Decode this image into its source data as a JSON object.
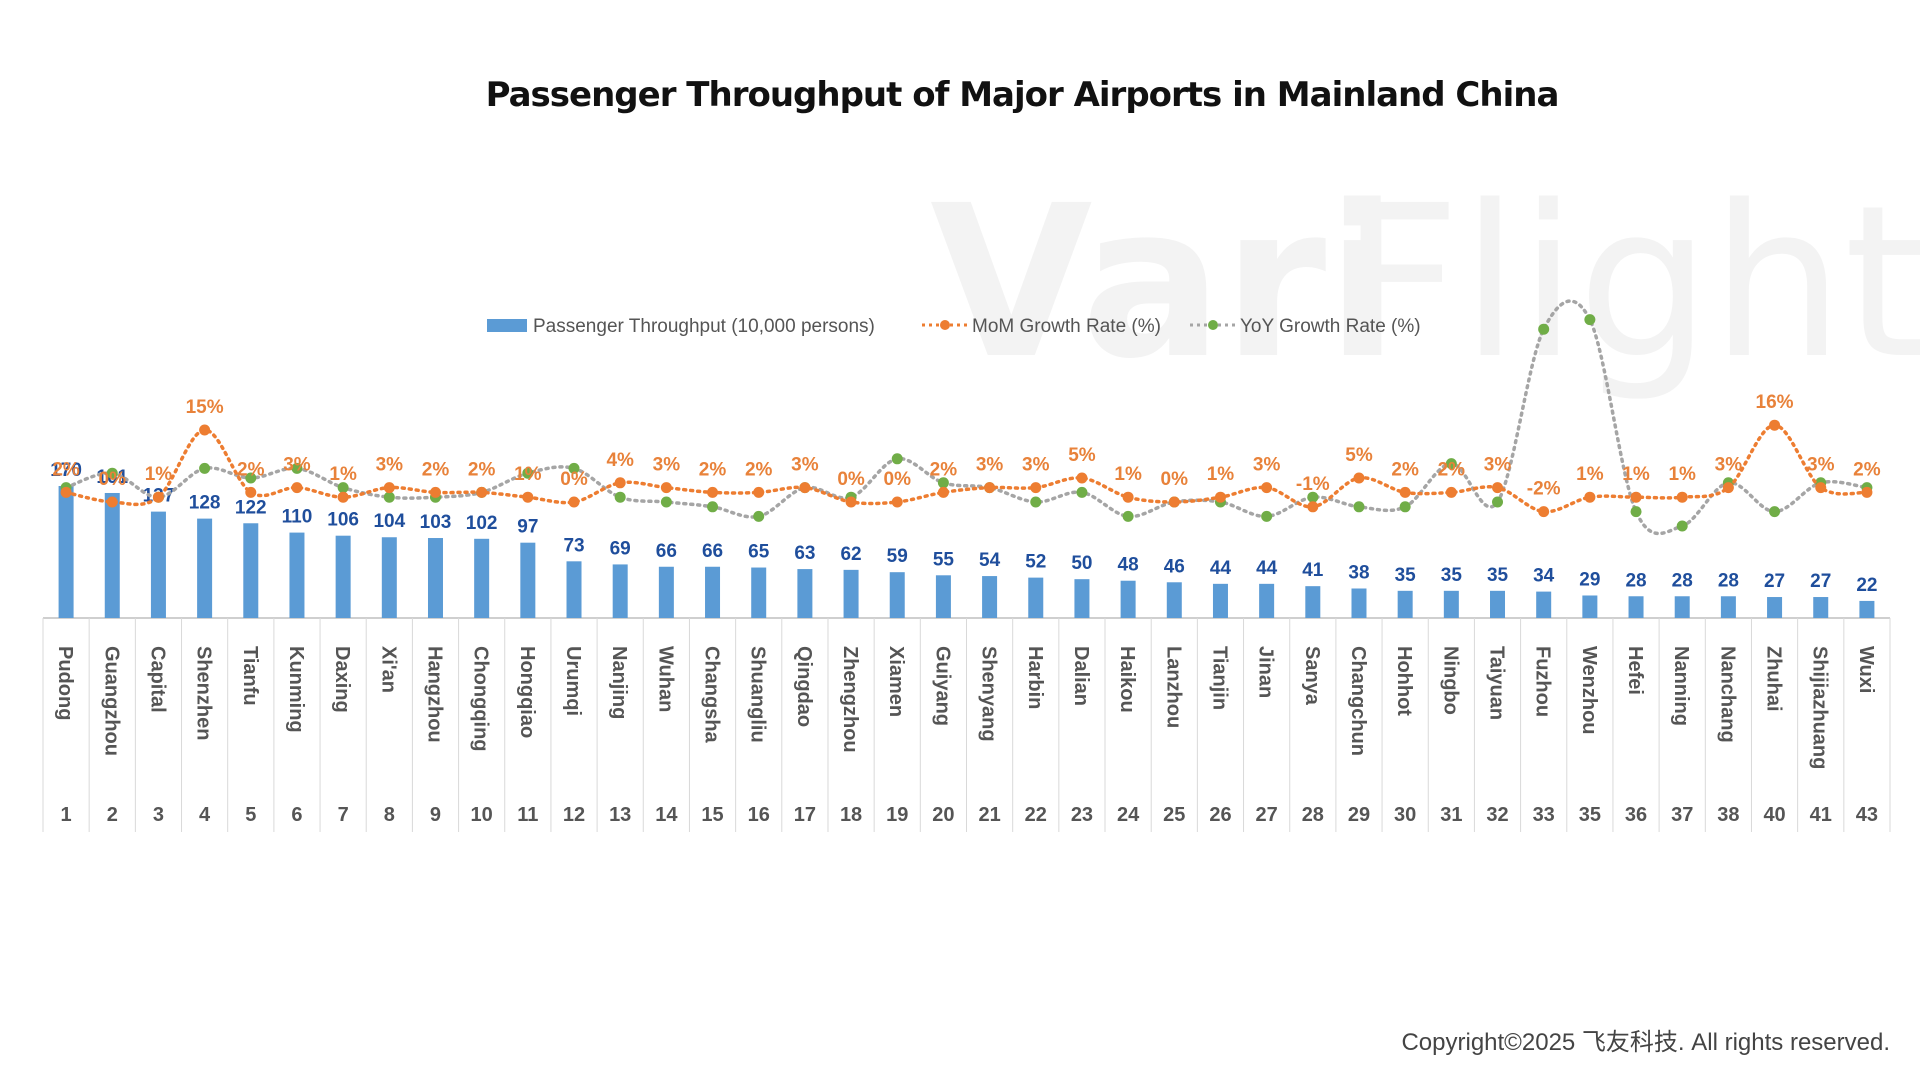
{
  "title": "Passenger Throughput of Major Airports in Mainland China",
  "watermark": {
    "bold": "Vari",
    "light": "Flight"
  },
  "copyright": "Copyright©2025 飞友科技. All rights reserved.",
  "colors": {
    "bar": "#5b9bd5",
    "mom": "#ed7d31",
    "yoy": "#70ad47",
    "yoy_line": "#a5a5a5",
    "bar_label": "#1f4e9c"
  },
  "chart_data": {
    "type": "bar",
    "title": "Passenger Throughput of Major Airports in Mainland China",
    "legend_position": "top",
    "grid": false,
    "categories": [
      "Pudong",
      "Guangzhou",
      "Capital",
      "Shenzhen",
      "Tianfu",
      "Kunming",
      "Daxing",
      "Xi'an",
      "Hangzhou",
      "Chongqing",
      "Hongqiao",
      "Urumqi",
      "Nanjing",
      "Wuhan",
      "Changsha",
      "Shuangliu",
      "Qingdao",
      "Zhengzhou",
      "Xiamen",
      "Guiyang",
      "Shenyang",
      "Harbin",
      "Dalian",
      "Haikou",
      "Lanzhou",
      "Tianjin",
      "Jinan",
      "Sanya",
      "Changchun",
      "Hohhot",
      "Ningbo",
      "Taiyuan",
      "Fuzhou",
      "Wenzhou",
      "Hefei",
      "Nanning",
      "Nanchang",
      "Zhuhai",
      "Shijiazhuang",
      "Wuxi"
    ],
    "ranks": [
      "1",
      "2",
      "3",
      "4",
      "5",
      "6",
      "7",
      "8",
      "9",
      "10",
      "11",
      "12",
      "13",
      "14",
      "15",
      "16",
      "17",
      "18",
      "19",
      "20",
      "21",
      "22",
      "23",
      "24",
      "25",
      "26",
      "27",
      "28",
      "29",
      "30",
      "31",
      "32",
      "33",
      "35",
      "36",
      "37",
      "38",
      "40",
      "41",
      "43"
    ],
    "series": [
      {
        "name": "Passenger Throughput (10,000 persons)",
        "type": "bar",
        "values": [
          170,
          161,
          137,
          128,
          122,
          110,
          106,
          104,
          103,
          102,
          97,
          73,
          69,
          66,
          66,
          65,
          63,
          62,
          59,
          55,
          54,
          52,
          50,
          48,
          46,
          44,
          44,
          41,
          38,
          35,
          35,
          35,
          34,
          29,
          28,
          28,
          28,
          27,
          27,
          22
        ]
      },
      {
        "name": "MoM Growth Rate (%)",
        "type": "line",
        "values": [
          2,
          0,
          1,
          15,
          2,
          3,
          1,
          3,
          2,
          2,
          1,
          0,
          4,
          3,
          2,
          2,
          3,
          0,
          0,
          2,
          3,
          3,
          5,
          1,
          0,
          1,
          3,
          -1,
          5,
          2,
          2,
          3,
          -2,
          1,
          1,
          1,
          3,
          16,
          3,
          2
        ],
        "labels": [
          "2%",
          "0%",
          "1%",
          "15%",
          "2%",
          "3%",
          "1%",
          "3%",
          "2%",
          "2%",
          "1%",
          "0%",
          "4%",
          "3%",
          "2%",
          "2%",
          "3%",
          "0%",
          "0%",
          "2%",
          "3%",
          "3%",
          "5%",
          "1%",
          "0%",
          "1%",
          "3%",
          "-1%",
          "5%",
          "2%",
          "2%",
          "3%",
          "-2%",
          "1%",
          "1%",
          "1%",
          "3%",
          "16%",
          "3%",
          "2%"
        ]
      },
      {
        "name": "YoY Growth Rate (%)",
        "type": "line",
        "values": [
          3,
          6,
          1,
          7,
          5,
          7,
          3,
          1,
          1,
          2,
          6,
          7,
          1,
          0,
          -1,
          -3,
          3,
          1,
          9,
          4,
          3,
          0,
          2,
          -3,
          0,
          0,
          -3,
          1,
          -1,
          -1,
          8,
          0,
          36,
          38,
          -2,
          -5,
          4,
          -2,
          4,
          3
        ]
      }
    ]
  }
}
